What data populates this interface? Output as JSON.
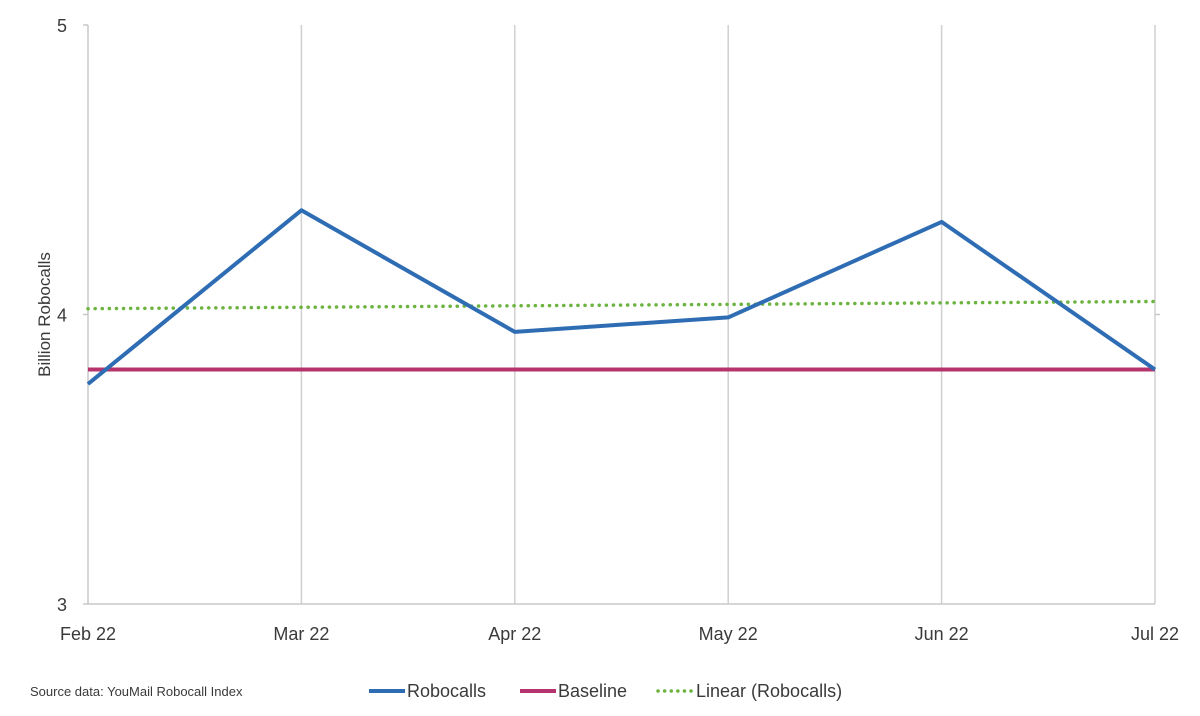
{
  "chart_data": {
    "type": "line",
    "categories": [
      "Feb 22",
      "Mar 22",
      "Apr 22",
      "May 22",
      "Jun 22",
      "Jul 22"
    ],
    "series": [
      {
        "name": "Robocalls",
        "values": [
          3.76,
          4.36,
          3.94,
          3.99,
          4.32,
          3.81
        ],
        "color": "#2e6db3",
        "style": "solid"
      },
      {
        "name": "Baseline",
        "values": [
          3.81,
          3.81,
          3.81,
          3.81,
          3.81,
          3.81
        ],
        "color": "#b5346e",
        "style": "solid"
      },
      {
        "name": "Linear (Robocalls)",
        "values": [
          4.02,
          4.025,
          4.03,
          4.035,
          4.04,
          4.045
        ],
        "color": "#6db33f",
        "style": "dotted"
      }
    ],
    "ylabel": "Billion Robocalls",
    "ylim": [
      3,
      5
    ],
    "yticks": [
      "3",
      "4",
      "5"
    ],
    "grid": "vertical",
    "legend_position": "bottom"
  },
  "source_note": "Source data: YouMail Robocall Index"
}
